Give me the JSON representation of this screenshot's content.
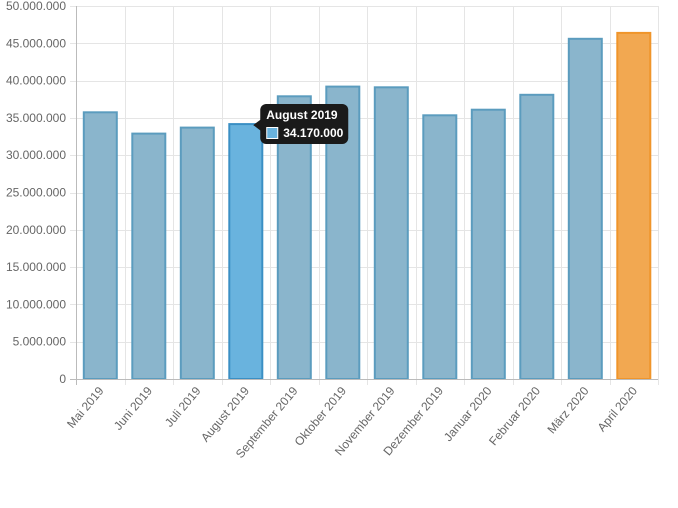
{
  "chart_data": {
    "type": "bar",
    "categories": [
      "Mai 2019",
      "Juni 2019",
      "Juli 2019",
      "August 2019",
      "September 2019",
      "Oktober 2019",
      "November 2019",
      "Dezember 2019",
      "Januar 2020",
      "Februar 2020",
      "März 2020",
      "April 2020"
    ],
    "values": [
      35750000,
      32900000,
      33700000,
      34170000,
      37900000,
      39200000,
      39100000,
      35350000,
      36100000,
      38100000,
      45600000,
      46400000
    ],
    "ylim": [
      0,
      50000000
    ],
    "y_ticks": [
      "0",
      "5.000.000",
      "10.000.000",
      "15.000.000",
      "20.000.000",
      "25.000.000",
      "30.000.000",
      "35.000.000",
      "40.000.000",
      "45.000.000",
      "50.000.000"
    ],
    "grid": true,
    "legend": false,
    "colors": {
      "bar_fill": "#8ab5cc",
      "bar_border": "#5b9cbe",
      "hover_fill": "#69b3de",
      "hover_border": "#3a8fc4",
      "highlight_fill": "#f2a851",
      "highlight_border": "#f0952a",
      "grid": "#e5e5e5",
      "axis": "#bbbbbb",
      "tick_text": "#666666"
    },
    "hovered_index": 3,
    "highlighted_index": 11,
    "tooltip": {
      "title": "August 2019",
      "value_label": "34.170.000",
      "background": "#1a1a1a"
    }
  }
}
